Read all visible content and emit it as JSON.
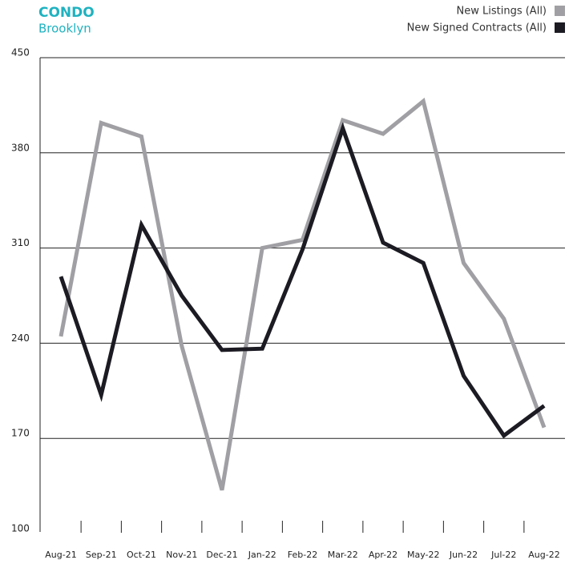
{
  "chart_data": {
    "type": "line",
    "title": "CONDO",
    "subtitle": "Brooklyn",
    "categories": [
      "Aug-21",
      "Sep-21",
      "Oct-21",
      "Nov-21",
      "Dec-21",
      "Jan-22",
      "Feb-22",
      "Mar-22",
      "Apr-22",
      "May-22",
      "Jun-22",
      "Jul-22",
      "Aug-22"
    ],
    "series": [
      {
        "name": "New Listings (All)",
        "color": "#a0a0a4",
        "values": [
          245,
          402,
          392,
          238,
          132,
          310,
          316,
          404,
          394,
          418,
          299,
          258,
          178
        ]
      },
      {
        "name": "New Signed Contracts (All)",
        "color": "#1c1a22",
        "values": [
          289,
          202,
          327,
          275,
          235,
          236,
          309,
          398,
          314,
          299,
          216,
          172,
          194
        ]
      }
    ],
    "ylim": [
      100,
      450
    ],
    "yticks": [
      100,
      170,
      240,
      310,
      380,
      450
    ],
    "grid": true,
    "legend": "top-right"
  }
}
